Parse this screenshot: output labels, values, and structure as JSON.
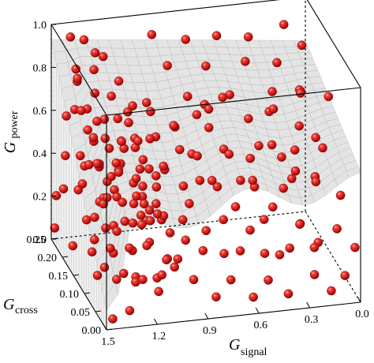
{
  "chart_data": {
    "type": "scatter",
    "projection": "3d",
    "surface": "light-gray mesh surface spanning the cube",
    "marker_color": "#d01818",
    "axis_color": "#000000",
    "axes": {
      "x": {
        "label_main": "G",
        "label_sub": "signal",
        "range": [
          0.0,
          1.5
        ],
        "reversed": true,
        "ticks": [
          1.5,
          1.2,
          0.9,
          0.6,
          0.3,
          0.0
        ],
        "tick_labels": [
          "1.5",
          "1.2",
          "0.9",
          "0.6",
          "0.3",
          "0.0"
        ]
      },
      "y": {
        "label_main": "G",
        "label_sub": "cross",
        "range": [
          0.0,
          0.25
        ],
        "ticks": [
          0.0,
          0.05,
          0.1,
          0.15,
          0.2,
          0.25
        ],
        "tick_labels": [
          "0.00",
          "0.05",
          "0.10",
          "0.15",
          "0.20",
          "0.25"
        ]
      },
      "z": {
        "label_main": "G",
        "label_accent": "·",
        "label_sub": "power",
        "range": [
          0.0,
          1.0
        ],
        "ticks": [
          0.0,
          0.2,
          0.4,
          0.6,
          0.8,
          1.0
        ],
        "tick_labels": [
          "0.0",
          "0.2",
          "0.4",
          "0.6",
          "0.8",
          "1.0"
        ]
      }
    },
    "points": [
      [
        1.4,
        0.24,
        0.95
      ],
      [
        1.32,
        0.24,
        0.93
      ],
      [
        1.28,
        0.22,
        0.9
      ],
      [
        1.42,
        0.2,
        0.87
      ],
      [
        1.3,
        0.21,
        0.84
      ],
      [
        1.22,
        0.23,
        0.86
      ],
      [
        1.18,
        0.19,
        0.81
      ],
      [
        1.45,
        0.17,
        0.88
      ],
      [
        1.36,
        0.16,
        0.82
      ],
      [
        1.25,
        0.17,
        0.78
      ],
      [
        1.48,
        0.13,
        0.8
      ],
      [
        1.4,
        0.12,
        0.76
      ],
      [
        1.33,
        0.14,
        0.73
      ],
      [
        1.46,
        0.09,
        0.74
      ],
      [
        1.38,
        0.08,
        0.7
      ],
      [
        1.28,
        0.1,
        0.69
      ],
      [
        1.2,
        0.13,
        0.72
      ],
      [
        1.15,
        0.15,
        0.76
      ],
      [
        1.49,
        0.05,
        0.69
      ],
      [
        1.42,
        0.04,
        0.64
      ],
      [
        1.35,
        0.06,
        0.62
      ],
      [
        1.26,
        0.05,
        0.6
      ],
      [
        1.18,
        0.08,
        0.63
      ],
      [
        1.1,
        0.11,
        0.67
      ],
      [
        1.47,
        0.02,
        0.58
      ],
      [
        1.38,
        0.02,
        0.55
      ],
      [
        1.3,
        0.03,
        0.52
      ],
      [
        1.22,
        0.02,
        0.5
      ],
      [
        1.14,
        0.05,
        0.55
      ],
      [
        1.06,
        0.08,
        0.59
      ],
      [
        1.45,
        0.22,
        0.62
      ],
      [
        1.35,
        0.2,
        0.58
      ],
      [
        1.26,
        0.19,
        0.55
      ],
      [
        1.16,
        0.21,
        0.6
      ],
      [
        1.08,
        0.18,
        0.54
      ],
      [
        1.42,
        0.18,
        0.5
      ],
      [
        1.32,
        0.17,
        0.47
      ],
      [
        1.22,
        0.16,
        0.45
      ],
      [
        1.12,
        0.14,
        0.48
      ],
      [
        1.04,
        0.16,
        0.44
      ],
      [
        1.46,
        0.14,
        0.44
      ],
      [
        1.36,
        0.12,
        0.4
      ],
      [
        1.27,
        0.13,
        0.38
      ],
      [
        1.18,
        0.11,
        0.41
      ],
      [
        1.09,
        0.09,
        0.4
      ],
      [
        1.44,
        0.1,
        0.35
      ],
      [
        1.34,
        0.09,
        0.32
      ],
      [
        1.24,
        0.08,
        0.34
      ],
      [
        1.15,
        0.07,
        0.36
      ],
      [
        1.06,
        0.05,
        0.33
      ],
      [
        1.48,
        0.07,
        0.3
      ],
      [
        1.4,
        0.06,
        0.27
      ],
      [
        1.3,
        0.05,
        0.28
      ],
      [
        1.21,
        0.04,
        0.3
      ],
      [
        1.12,
        0.02,
        0.26
      ],
      [
        1.46,
        0.04,
        0.22
      ],
      [
        1.36,
        0.03,
        0.2
      ],
      [
        1.26,
        0.02,
        0.18
      ],
      [
        1.16,
        0.01,
        0.21
      ],
      [
        1.04,
        0.03,
        0.24
      ],
      [
        1.43,
        0.24,
        0.4
      ],
      [
        1.33,
        0.23,
        0.36
      ],
      [
        1.23,
        0.24,
        0.33
      ],
      [
        1.13,
        0.22,
        0.37
      ],
      [
        1.03,
        0.23,
        0.42
      ],
      [
        1.48,
        0.21,
        0.3
      ],
      [
        1.38,
        0.22,
        0.27
      ],
      [
        1.28,
        0.2,
        0.24
      ],
      [
        1.18,
        0.21,
        0.27
      ],
      [
        1.08,
        0.2,
        0.31
      ],
      [
        1.47,
        0.25,
        0.2
      ],
      [
        1.37,
        0.19,
        0.18
      ],
      [
        1.27,
        0.18,
        0.15
      ],
      [
        1.17,
        0.17,
        0.19
      ],
      [
        1.07,
        0.15,
        0.22
      ],
      [
        1.49,
        0.16,
        0.12
      ],
      [
        1.39,
        0.15,
        0.1
      ],
      [
        1.29,
        0.13,
        0.12
      ],
      [
        1.19,
        0.12,
        0.14
      ],
      [
        1.09,
        0.12,
        0.17
      ],
      [
        1.41,
        0.11,
        0.06
      ],
      [
        1.31,
        0.1,
        0.05
      ],
      [
        1.21,
        0.09,
        0.07
      ],
      [
        1.11,
        0.07,
        0.09
      ],
      [
        1.01,
        0.1,
        0.12
      ],
      [
        1.48,
        0.25,
        0.05
      ],
      [
        1.45,
        0.01,
        0.03
      ],
      [
        1.35,
        0.01,
        0.06
      ],
      [
        1.25,
        0.06,
        0.1
      ],
      [
        1.14,
        0.04,
        0.08
      ],
      [
        1.02,
        0.06,
        0.15
      ],
      [
        0.98,
        0.14,
        0.25
      ],
      [
        0.96,
        0.19,
        0.35
      ],
      [
        1.0,
        0.12,
        0.5
      ],
      [
        0.99,
        0.21,
        0.66
      ],
      [
        0.92,
        0.24,
        0.92
      ],
      [
        0.72,
        0.24,
        0.88
      ],
      [
        0.55,
        0.23,
        0.9
      ],
      [
        0.35,
        0.24,
        0.86
      ],
      [
        0.14,
        0.24,
        0.9
      ],
      [
        0.88,
        0.2,
        0.84
      ],
      [
        0.64,
        0.21,
        0.8
      ],
      [
        0.42,
        0.2,
        0.82
      ],
      [
        0.22,
        0.21,
        0.78
      ],
      [
        0.06,
        0.22,
        0.83
      ],
      [
        0.8,
        0.17,
        0.74
      ],
      [
        0.58,
        0.18,
        0.7
      ],
      [
        0.3,
        0.17,
        0.72
      ],
      [
        0.12,
        0.18,
        0.68
      ],
      [
        0.9,
        0.15,
        0.64
      ],
      [
        0.7,
        0.15,
        0.62
      ],
      [
        0.48,
        0.14,
        0.66
      ],
      [
        0.18,
        0.14,
        0.6
      ],
      [
        0.84,
        0.12,
        0.56
      ],
      [
        0.62,
        0.12,
        0.54
      ],
      [
        0.38,
        0.11,
        0.58
      ],
      [
        0.08,
        0.11,
        0.54
      ],
      [
        0.76,
        0.09,
        0.48
      ],
      [
        0.52,
        0.09,
        0.46
      ],
      [
        0.28,
        0.08,
        0.5
      ],
      [
        0.16,
        0.08,
        0.44
      ],
      [
        0.92,
        0.07,
        0.42
      ],
      [
        0.66,
        0.06,
        0.4
      ],
      [
        0.44,
        0.06,
        0.38
      ],
      [
        0.04,
        0.06,
        0.4
      ],
      [
        0.86,
        0.04,
        0.34
      ],
      [
        0.6,
        0.04,
        0.32
      ],
      [
        0.32,
        0.03,
        0.34
      ],
      [
        0.1,
        0.03,
        0.3
      ],
      [
        0.78,
        0.02,
        0.26
      ],
      [
        0.54,
        0.02,
        0.24
      ],
      [
        0.26,
        0.01,
        0.26
      ],
      [
        0.02,
        0.01,
        0.24
      ],
      [
        0.94,
        0.23,
        0.58
      ],
      [
        0.68,
        0.22,
        0.56
      ],
      [
        0.46,
        0.24,
        0.6
      ],
      [
        0.24,
        0.23,
        0.52
      ],
      [
        0.04,
        0.24,
        0.58
      ],
      [
        0.82,
        0.19,
        0.46
      ],
      [
        0.56,
        0.19,
        0.44
      ],
      [
        0.34,
        0.2,
        0.42
      ],
      [
        0.14,
        0.19,
        0.4
      ],
      [
        0.74,
        0.16,
        0.36
      ],
      [
        0.5,
        0.16,
        0.34
      ],
      [
        0.26,
        0.15,
        0.3
      ],
      [
        0.06,
        0.16,
        0.32
      ],
      [
        0.88,
        0.13,
        0.24
      ],
      [
        0.64,
        0.13,
        0.22
      ],
      [
        0.4,
        0.13,
        0.2
      ],
      [
        0.2,
        0.12,
        0.18
      ],
      [
        0.8,
        0.1,
        0.14
      ],
      [
        0.58,
        0.1,
        0.12
      ],
      [
        0.36,
        0.09,
        0.1
      ],
      [
        0.12,
        0.1,
        0.12
      ],
      [
        0.92,
        0.05,
        0.1
      ],
      [
        0.7,
        0.05,
        0.08
      ],
      [
        0.48,
        0.05,
        0.06
      ],
      [
        0.22,
        0.04,
        0.08
      ],
      [
        0.04,
        0.04,
        0.06
      ],
      [
        0.84,
        0.01,
        0.08
      ],
      [
        0.62,
        0.01,
        0.06
      ],
      [
        0.4,
        0.02,
        0.04
      ],
      [
        0.16,
        0.01,
        0.05
      ],
      [
        0.96,
        0.25,
        0.2
      ],
      [
        0.72,
        0.25,
        0.18
      ],
      [
        0.52,
        0.25,
        0.16
      ],
      [
        0.3,
        0.25,
        0.14
      ],
      [
        0.08,
        0.25,
        0.16
      ],
      [
        0.96,
        0.11,
        0.72
      ],
      [
        0.74,
        0.12,
        0.76
      ],
      [
        0.44,
        0.02,
        0.68
      ],
      [
        0.2,
        0.05,
        0.7
      ],
      [
        0.02,
        0.13,
        0.74
      ],
      [
        0.66,
        0.2,
        0.64
      ],
      [
        0.28,
        0.18,
        0.62
      ],
      [
        0.86,
        0.08,
        0.62
      ],
      [
        0.56,
        0.07,
        0.6
      ],
      [
        0.1,
        0.2,
        0.66
      ],
      [
        0.94,
        0.18,
        0.16
      ],
      [
        0.34,
        0.06,
        0.18
      ],
      [
        1.44,
        0.19,
        0.7
      ],
      [
        1.34,
        0.21,
        0.66
      ],
      [
        1.24,
        0.12,
        0.62
      ],
      [
        1.14,
        0.18,
        0.68
      ],
      [
        1.04,
        0.13,
        0.64
      ],
      [
        1.46,
        0.11,
        0.58
      ],
      [
        1.36,
        0.24,
        0.74
      ],
      [
        1.26,
        0.14,
        0.52
      ],
      [
        1.16,
        0.03,
        0.46
      ],
      [
        1.06,
        0.21,
        0.5
      ],
      [
        1.4,
        0.03,
        0.4
      ],
      [
        1.3,
        0.15,
        0.42
      ],
      [
        1.2,
        0.06,
        0.46
      ],
      [
        1.1,
        0.24,
        0.44
      ],
      [
        1.02,
        0.01,
        0.36
      ],
      [
        1.44,
        0.06,
        0.48
      ],
      [
        1.34,
        0.18,
        0.56
      ],
      [
        1.24,
        0.04,
        0.4
      ],
      [
        1.14,
        0.12,
        0.3
      ],
      [
        1.04,
        0.19,
        0.26
      ]
    ]
  }
}
